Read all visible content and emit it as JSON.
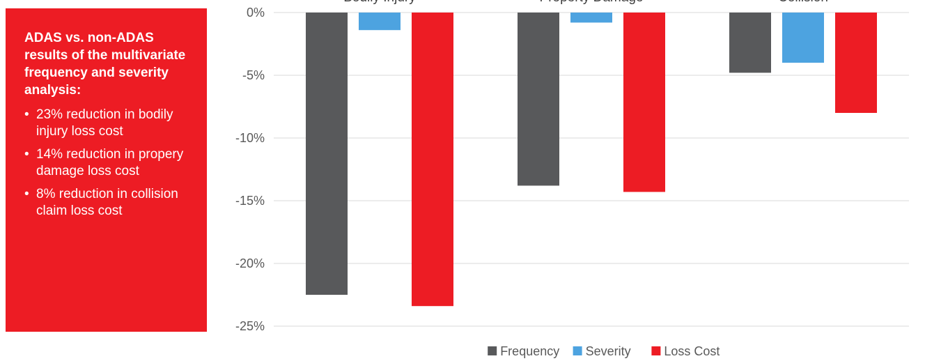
{
  "panel": {
    "heading": "ADAS vs. non-ADAS results of the multivariate frequency and severity analysis:",
    "bullet_char": "•",
    "items": [
      "23% reduction in bodily injury loss cost",
      "14% reduction in propery damage loss cost",
      "8% reduction in collision claim loss cost"
    ],
    "background_color": "#ed1c24"
  },
  "chart_data": {
    "type": "bar",
    "categories": [
      "Bodily Injury",
      "Property Damage",
      "Collision"
    ],
    "series": [
      {
        "name": "Frequency",
        "color": "#58595b",
        "values": [
          -22.5,
          -13.8,
          -4.8
        ]
      },
      {
        "name": "Severity",
        "color": "#4da3e0",
        "values": [
          -1.4,
          -0.8,
          -4.0
        ]
      },
      {
        "name": "Loss Cost",
        "color": "#ed1c24",
        "values": [
          -23.4,
          -14.3,
          -8.0
        ]
      }
    ],
    "y_ticks": [
      "0%",
      "-5%",
      "-10%",
      "-15%",
      "-20%",
      "-25%"
    ],
    "y_tick_values": [
      0,
      -5,
      -10,
      -15,
      -20,
      -25
    ],
    "ylim": [
      -25,
      0
    ],
    "grid": true,
    "legend_position": "bottom-center",
    "category_labels_position": "top"
  }
}
